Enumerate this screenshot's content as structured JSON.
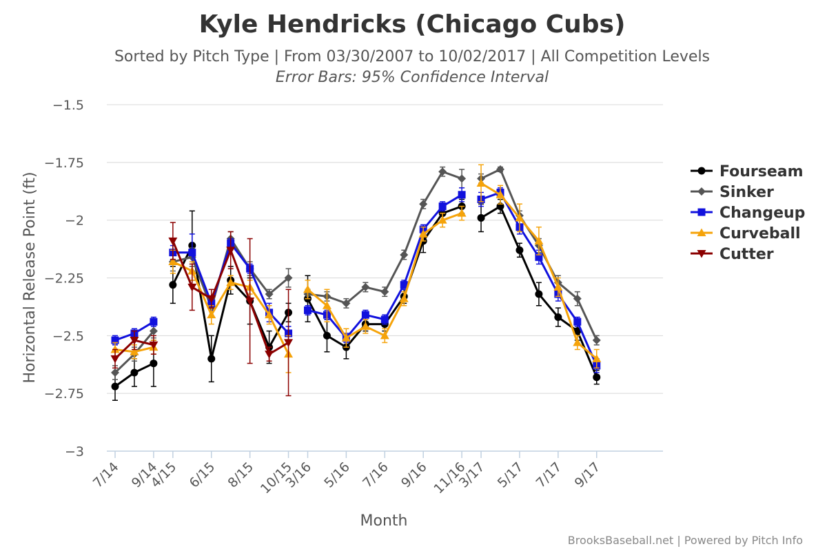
{
  "chart_data": {
    "type": "line",
    "title": "Kyle Hendricks (Chicago Cubs)",
    "subtitle": "Sorted by Pitch Type | From 03/30/2007 to 10/02/2017 | All Competition Levels",
    "subtitle2": "Error Bars: 95% Confidence Interval",
    "xlabel": "Month",
    "ylabel": "Horizontal Release Point (ft)",
    "credits": "BrooksBaseball.net | Powered by Pitch Info",
    "ylim": [
      -3,
      -1.5
    ],
    "yticks": [
      -1.5,
      -1.75,
      -2,
      -2.25,
      -2.5,
      -2.75,
      -3
    ],
    "ytick_labels": [
      "−1.5",
      "−1.75",
      "−2",
      "−2.25",
      "−2.5",
      "−2.75",
      "−3"
    ],
    "categories": [
      "7/14",
      "8/14",
      "9/14",
      "4/15",
      "5/15",
      "6/15",
      "7/15",
      "8/15",
      "9/15",
      "10/15",
      "3/16",
      "4/16",
      "5/16",
      "6/16",
      "7/16",
      "8/16",
      "9/16",
      "10/16",
      "11/16",
      "3/17",
      "4/17",
      "5/17",
      "6/17",
      "7/17",
      "8/17",
      "9/17"
    ],
    "xtick_labels": [
      "7/14",
      "9/14",
      "4/15",
      "6/15",
      "8/15",
      "10/15",
      "3/16",
      "5/16",
      "7/16",
      "9/16",
      "11/16",
      "3/17",
      "5/17",
      "7/17",
      "9/17"
    ],
    "segments": [
      [
        0,
        2
      ],
      [
        3,
        9
      ],
      [
        10,
        18
      ],
      [
        19,
        25
      ]
    ],
    "legend_position": "right",
    "series": [
      {
        "name": "Fourseam",
        "color": "#000000",
        "marker": "circle",
        "values": [
          -2.72,
          -2.66,
          -2.62,
          -2.28,
          -2.11,
          -2.6,
          -2.26,
          -2.35,
          -2.55,
          -2.4,
          -2.34,
          -2.5,
          -2.55,
          -2.45,
          -2.45,
          -2.33,
          -2.09,
          -1.97,
          -1.94,
          -1.99,
          -1.94,
          -2.13,
          -2.32,
          -2.42,
          -2.48,
          -2.68
        ],
        "errors": [
          0.06,
          0.06,
          0.1,
          0.08,
          0.15,
          0.1,
          0.06,
          0.1,
          0.07,
          0.04,
          0.1,
          0.07,
          0.05,
          0.03,
          0.03,
          0.03,
          0.05,
          0.04,
          0.03,
          0.06,
          0.03,
          0.03,
          0.05,
          0.04,
          0.04,
          0.03
        ]
      },
      {
        "name": "Sinker",
        "color": "#555555",
        "marker": "diamond",
        "values": [
          -2.66,
          -2.58,
          -2.48,
          -2.18,
          -2.16,
          -2.38,
          -2.08,
          -2.21,
          -2.32,
          -2.25,
          -2.32,
          -2.33,
          -2.36,
          -2.29,
          -2.31,
          -2.15,
          -1.93,
          -1.79,
          -1.82,
          -1.82,
          -1.78,
          -1.98,
          -2.11,
          -2.27,
          -2.34,
          -2.52
        ],
        "errors": [
          0.03,
          0.03,
          0.03,
          0.04,
          0.04,
          0.04,
          0.03,
          0.03,
          0.02,
          0.04,
          0.02,
          0.02,
          0.02,
          0.02,
          0.02,
          0.02,
          0.02,
          0.02,
          0.04,
          0.02,
          0.01,
          0.02,
          0.03,
          0.03,
          0.03,
          0.02
        ]
      },
      {
        "name": "Changeup",
        "color": "#1111DD",
        "marker": "square",
        "values": [
          -2.52,
          -2.49,
          -2.44,
          -2.14,
          -2.14,
          -2.36,
          -2.1,
          -2.21,
          -2.4,
          -2.49,
          -2.39,
          -2.41,
          -2.51,
          -2.41,
          -2.43,
          -2.28,
          -2.04,
          -1.94,
          -1.89,
          -1.91,
          -1.88,
          -2.03,
          -2.16,
          -2.32,
          -2.44,
          -2.63
        ],
        "errors": [
          0.02,
          0.02,
          0.02,
          0.03,
          0.08,
          0.03,
          0.02,
          0.02,
          0.04,
          0.03,
          0.02,
          0.02,
          0.02,
          0.02,
          0.02,
          0.02,
          0.02,
          0.02,
          0.03,
          0.03,
          0.02,
          0.03,
          0.03,
          0.03,
          0.02,
          0.03
        ]
      },
      {
        "name": "Curveball",
        "color": "#F5A30A",
        "marker": "triangle",
        "values": [
          -2.56,
          -2.57,
          -2.55,
          -2.18,
          -2.22,
          -2.41,
          -2.27,
          -2.29,
          -2.41,
          -2.58,
          -2.3,
          -2.37,
          -2.51,
          -2.46,
          -2.5,
          -2.34,
          -2.06,
          -2.0,
          -1.97,
          -1.84,
          -1.89,
          -1.99,
          -2.09,
          -2.29,
          -2.53,
          -2.6
        ],
        "errors": [
          0.03,
          0.03,
          0.03,
          0.05,
          0.04,
          0.04,
          0.03,
          0.03,
          0.04,
          0.08,
          0.04,
          0.07,
          0.04,
          0.03,
          0.03,
          0.03,
          0.03,
          0.03,
          0.03,
          0.08,
          0.04,
          0.06,
          0.06,
          0.04,
          0.03,
          0.04
        ]
      },
      {
        "name": "Cutter",
        "color": "#8B0000",
        "marker": "triangle-down",
        "values": [
          -2.6,
          -2.52,
          -2.54,
          -2.09,
          -2.29,
          -2.34,
          -2.13,
          -2.35,
          -2.58,
          -2.53,
          null,
          null,
          null,
          null,
          null,
          null,
          null,
          null,
          null,
          null,
          null,
          null,
          null,
          null,
          null,
          null
        ],
        "errors": [
          0.04,
          0.04,
          0.04,
          0.08,
          0.1,
          0.04,
          0.08,
          0.27,
          0.03,
          0.23,
          null,
          null,
          null,
          null,
          null,
          null,
          null,
          null,
          null,
          null,
          null,
          null,
          null,
          null,
          null,
          null
        ]
      }
    ]
  }
}
